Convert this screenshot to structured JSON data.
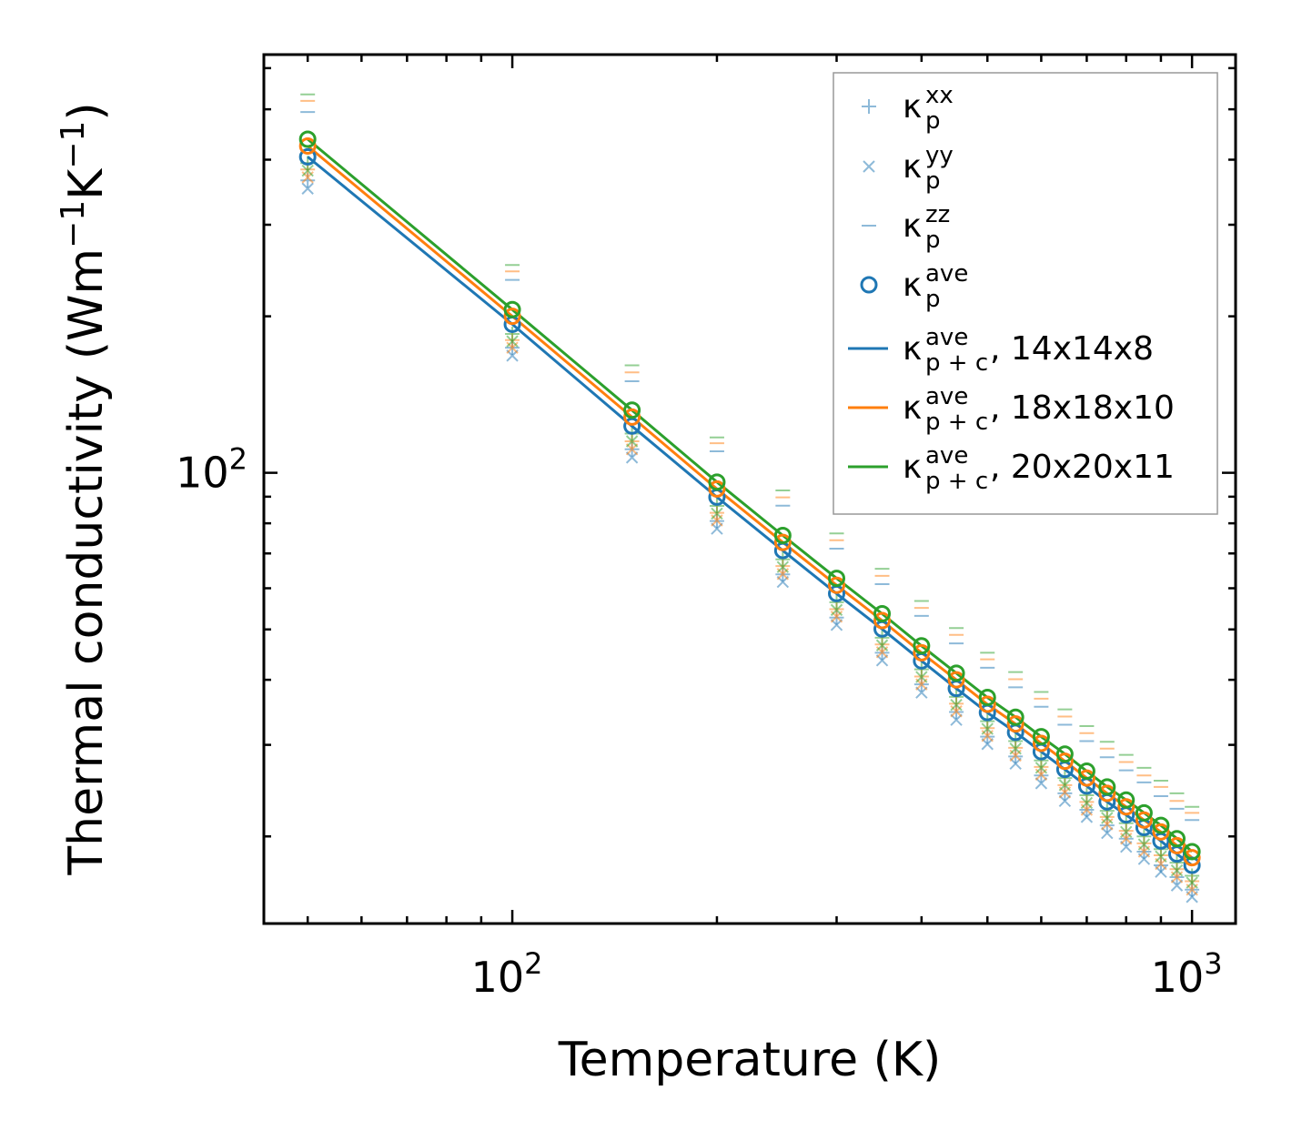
{
  "chart_data": {
    "type": "scatter",
    "title": "",
    "xlabel": "Temperature (K)",
    "ylabel": {
      "text": "Thermal conductivity (Wm",
      "sup1": "−1",
      "mid": "K",
      "sup2": "−1",
      "end": ")"
    },
    "xscale": "log",
    "yscale": "log",
    "xlim": [
      43.1,
      1159
    ],
    "ylim": [
      13.6,
      637
    ],
    "xticks": [
      {
        "value": 100,
        "base": "10",
        "exp": "2"
      },
      {
        "value": 1000,
        "base": "10",
        "exp": "3"
      }
    ],
    "yticks": [
      {
        "value": 100,
        "base": "10",
        "exp": "2"
      }
    ],
    "grid": false,
    "legend_position": "top-right",
    "colors": {
      "14x14x8": "#1f77b4",
      "18x18x10": "#ff7f0e",
      "20x20x11": "#2ca02c"
    },
    "x": [
      50,
      100,
      150,
      200,
      250,
      300,
      350,
      400,
      450,
      500,
      550,
      600,
      650,
      700,
      750,
      800,
      850,
      900,
      950,
      1000
    ],
    "series": [
      {
        "name": "14x14x8",
        "color": "#1f77b4",
        "ave": [
          405,
          193,
          123,
          89.8,
          70.9,
          58.6,
          50.1,
          43.5,
          38.5,
          34.6,
          31.7,
          29.1,
          26.9,
          25.0,
          23.3,
          22.0,
          20.8,
          19.6,
          18.5,
          17.6
        ],
        "xx": [
          365,
          174,
          111,
          80.8,
          63.8,
          52.7,
          45.1,
          39.2,
          34.7,
          31.1,
          28.5,
          26.2,
          24.2,
          22.5,
          21.0,
          19.8,
          18.7,
          17.6,
          16.7,
          15.8
        ],
        "yy": [
          352,
          168,
          107,
          78.1,
          61.7,
          51.0,
          43.6,
          37.8,
          33.5,
          30.1,
          27.6,
          25.3,
          23.4,
          21.8,
          20.3,
          19.1,
          18.1,
          17.1,
          16.1,
          15.3
        ],
        "zz": [
          494,
          235,
          150,
          110,
          86.5,
          71.5,
          61.1,
          53.1,
          47.0,
          42.2,
          38.7,
          35.5,
          32.8,
          30.5,
          28.4,
          26.8,
          25.4,
          23.9,
          22.6,
          21.5
        ]
      },
      {
        "name": "18x18x10",
        "color": "#ff7f0e",
        "ave": [
          425,
          200,
          128,
          93.1,
          73.5,
          60.8,
          52.0,
          45.1,
          40.0,
          35.9,
          32.9,
          30.2,
          27.9,
          25.9,
          24.2,
          22.8,
          21.5,
          20.4,
          19.2,
          18.2
        ],
        "xx": [
          383,
          180,
          115,
          83.8,
          66.2,
          54.7,
          46.8,
          40.6,
          36.0,
          32.3,
          29.6,
          27.2,
          25.1,
          23.3,
          21.8,
          20.5,
          19.4,
          18.4,
          17.3,
          16.4
        ],
        "yy": [
          370,
          174,
          111,
          81.0,
          63.9,
          52.9,
          45.2,
          39.2,
          34.8,
          31.2,
          28.6,
          26.3,
          24.3,
          22.5,
          21.1,
          19.8,
          18.7,
          17.7,
          16.7,
          15.8
        ],
        "zz": [
          519,
          244,
          156,
          114,
          89.7,
          74.2,
          63.4,
          55.0,
          48.8,
          43.8,
          40.1,
          36.8,
          34.0,
          31.6,
          29.5,
          27.8,
          26.2,
          24.9,
          23.4,
          22.2
        ]
      },
      {
        "name": "20x20x11",
        "color": "#2ca02c",
        "ave": [
          438,
          206,
          132,
          96.0,
          75.8,
          62.7,
          53.6,
          46.5,
          41.2,
          37.0,
          33.9,
          31.1,
          28.8,
          26.7,
          24.9,
          23.5,
          22.2,
          21.0,
          19.8,
          18.7
        ],
        "xx": [
          394,
          185,
          119,
          86.4,
          68.2,
          56.4,
          48.2,
          41.9,
          37.1,
          33.3,
          30.5,
          28.0,
          25.9,
          24.0,
          22.4,
          21.2,
          20.0,
          18.9,
          17.8,
          16.8
        ],
        "yy": [
          381,
          179,
          115,
          83.5,
          65.9,
          54.5,
          46.6,
          40.5,
          35.8,
          32.2,
          29.5,
          27.1,
          25.1,
          23.2,
          21.7,
          20.4,
          19.3,
          18.3,
          17.2,
          16.3
        ],
        "zz": [
          534,
          251,
          161,
          117,
          92.5,
          76.5,
          65.4,
          56.7,
          50.3,
          45.1,
          41.4,
          37.9,
          35.1,
          32.6,
          30.4,
          28.7,
          27.1,
          25.6,
          24.2,
          22.8
        ]
      }
    ],
    "legend": [
      {
        "marker": "plus",
        "color": "#1f77b4",
        "base": "κ",
        "sup": "xx",
        "sub": "p",
        "suffix": ""
      },
      {
        "marker": "cross",
        "color": "#1f77b4",
        "base": "κ",
        "sup": "yy",
        "sub": "p",
        "suffix": ""
      },
      {
        "marker": "dash",
        "color": "#1f77b4",
        "base": "κ",
        "sup": "zz",
        "sub": "p",
        "suffix": ""
      },
      {
        "marker": "circle",
        "color": "#1f77b4",
        "base": "κ",
        "sup": "ave",
        "sub": "p",
        "suffix": ""
      },
      {
        "marker": "line",
        "color": "#1f77b4",
        "base": "κ",
        "sup": "ave",
        "sub": "p + c",
        "suffix": ", 14x14x8"
      },
      {
        "marker": "line",
        "color": "#ff7f0e",
        "base": "κ",
        "sup": "ave",
        "sub": "p + c",
        "suffix": ", 18x18x10"
      },
      {
        "marker": "line",
        "color": "#2ca02c",
        "base": "κ",
        "sup": "ave",
        "sub": "p + c",
        "suffix": ", 20x20x11"
      }
    ]
  }
}
